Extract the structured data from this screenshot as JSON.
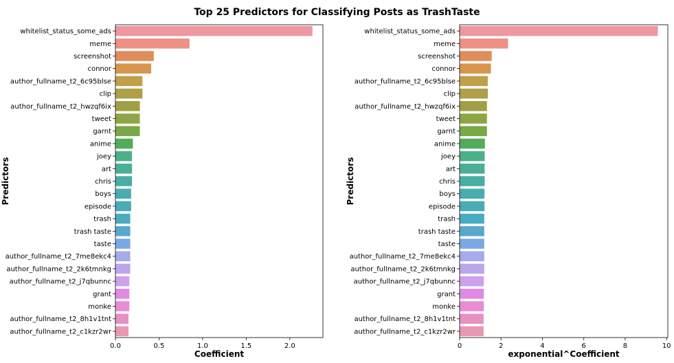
{
  "figure": {
    "title": "Top 25 Predictors for Classifying Posts as TrashTaste"
  },
  "palette": [
    "#ed97a0",
    "#ed9187",
    "#e08d5c",
    "#d8954e",
    "#c29f4b",
    "#ae9f48",
    "#a19f45",
    "#8ea546",
    "#77a947",
    "#52ac5a",
    "#4baf87",
    "#4baf97",
    "#48ada3",
    "#4aacad",
    "#48abb6",
    "#4aaac1",
    "#5aa7cc",
    "#7ba8e5",
    "#a7aaeb",
    "#bba6ec",
    "#cfa0ec",
    "#e08ae4",
    "#e68dd6",
    "#e591c3",
    "#e898b3"
  ],
  "chart_data": [
    {
      "type": "bar",
      "orientation": "horizontal",
      "categories": [
        "whitelist_status_some_ads",
        "meme",
        "screenshot",
        "connor",
        "author_fullname_t2_6c95blse",
        "clip",
        "author_fullname_t2_hwzqf6ix",
        "tweet",
        "garnt",
        "anime",
        "joey",
        "art",
        "chris",
        "boys",
        "episode",
        "trash",
        "trash taste",
        "taste",
        "author_fullname_t2_7me8ekc4",
        "author_fullname_t2_2k6tmnkg",
        "author_fullname_t2_j7qbunnc",
        "grant",
        "monke",
        "author_fullname_t2_8h1v1tnt",
        "author_fullname_t2_c1kzr2wr"
      ],
      "values": [
        2.26,
        0.85,
        0.44,
        0.41,
        0.31,
        0.31,
        0.28,
        0.28,
        0.28,
        0.2,
        0.19,
        0.19,
        0.19,
        0.18,
        0.18,
        0.17,
        0.17,
        0.17,
        0.17,
        0.17,
        0.16,
        0.16,
        0.16,
        0.15,
        0.15
      ],
      "xlabel": "Coefficient",
      "ylabel": "Predictors",
      "xlim": [
        0,
        2.38
      ],
      "xticks": [
        0.0,
        0.5,
        1.0,
        1.5,
        2.0
      ],
      "xtick_labels": [
        "0.0",
        "0.5",
        "1.0",
        "1.5",
        "2.0"
      ],
      "grid": false
    },
    {
      "type": "bar",
      "orientation": "horizontal",
      "categories": [
        "whitelist_status_some_ads",
        "meme",
        "screenshot",
        "connor",
        "author_fullname_t2_6c95blse",
        "clip",
        "author_fullname_t2_hwzqf6ix",
        "tweet",
        "garnt",
        "anime",
        "joey",
        "art",
        "chris",
        "boys",
        "episode",
        "trash",
        "trash taste",
        "taste",
        "author_fullname_t2_7me8ekc4",
        "author_fullname_t2_2k6tmnkg",
        "author_fullname_t2_j7qbunnc",
        "grant",
        "monke",
        "author_fullname_t2_8h1v1tnt",
        "author_fullname_t2_c1kzr2wr"
      ],
      "values": [
        9.58,
        2.34,
        1.55,
        1.51,
        1.36,
        1.36,
        1.32,
        1.32,
        1.32,
        1.22,
        1.21,
        1.21,
        1.21,
        1.2,
        1.2,
        1.19,
        1.19,
        1.19,
        1.19,
        1.19,
        1.17,
        1.17,
        1.17,
        1.16,
        1.16
      ],
      "xlabel": "exponential^Coefficient",
      "ylabel": "Predictors",
      "xlim": [
        0,
        10.06
      ],
      "xticks": [
        0,
        2,
        4,
        6,
        8,
        10
      ],
      "xtick_labels": [
        "0",
        "2",
        "4",
        "6",
        "8",
        "10"
      ],
      "grid": false
    }
  ]
}
